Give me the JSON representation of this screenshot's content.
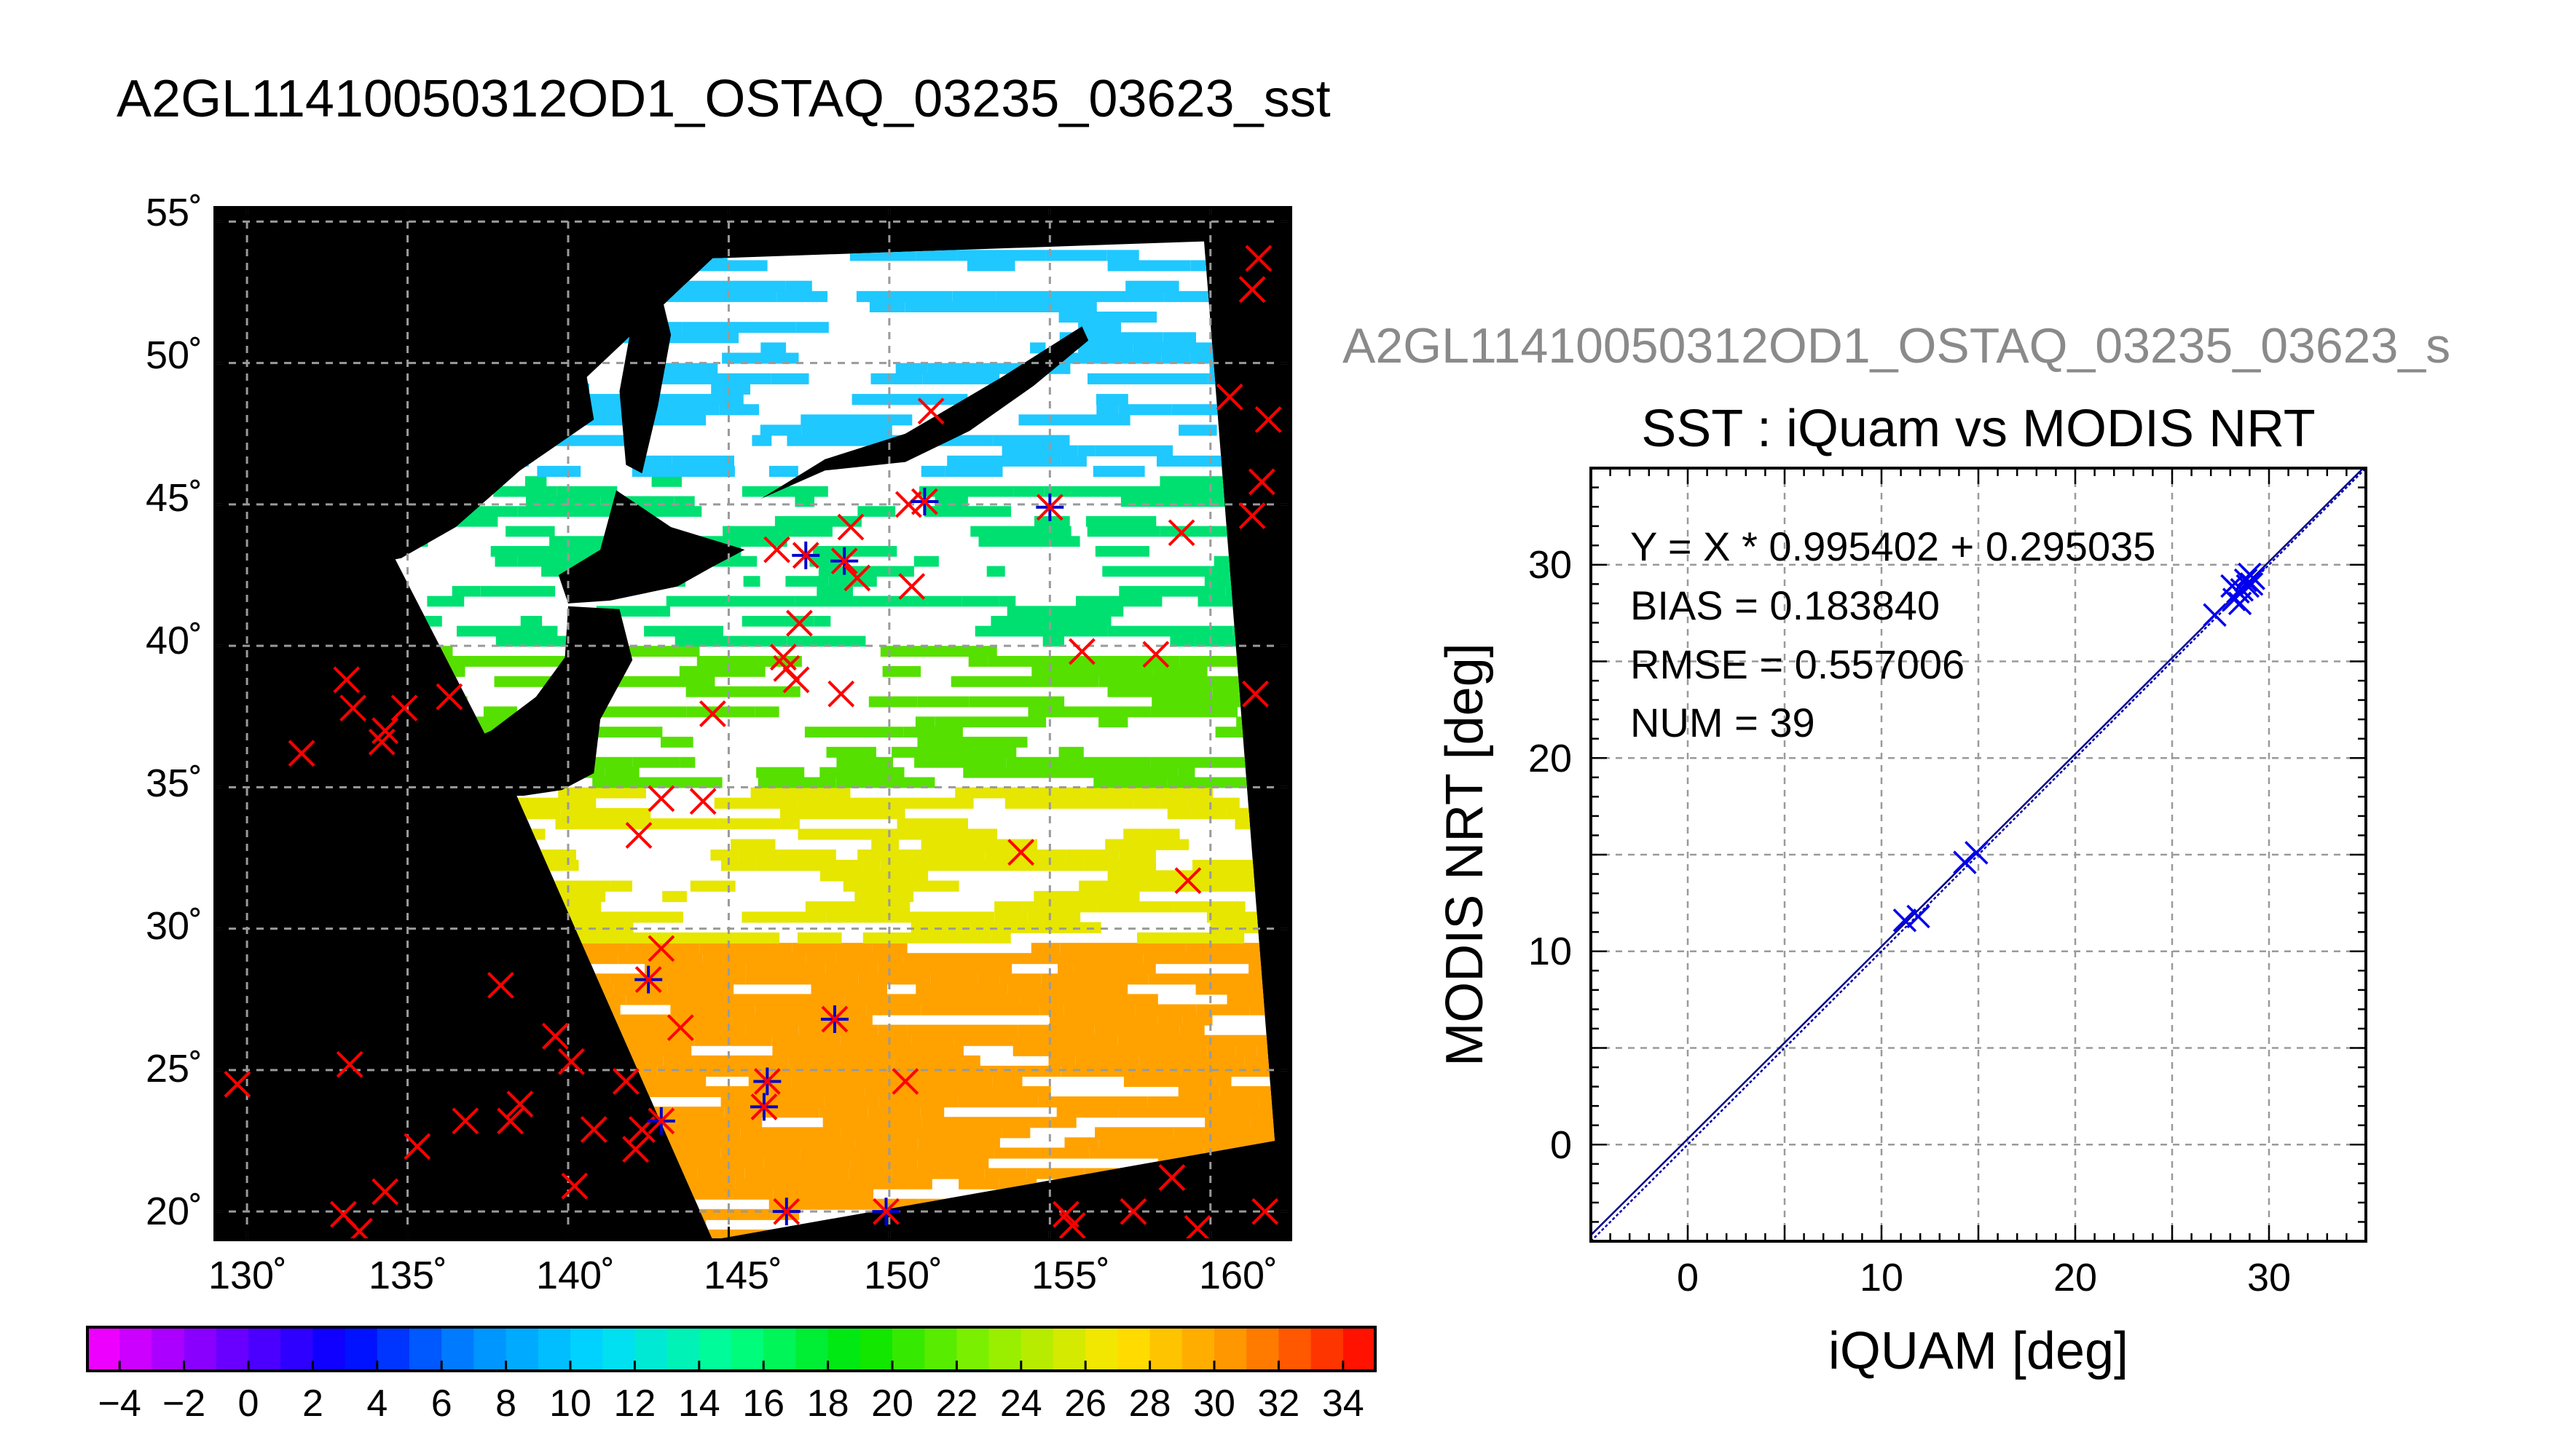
{
  "map_panel": {
    "title": "A2GL11410050312OD1_OSTAQ_03235_03623_sst",
    "lat_ticks": [
      "20˚",
      "25˚",
      "30˚",
      "35˚",
      "40˚",
      "45˚",
      "50˚",
      "55˚"
    ],
    "lon_ticks": [
      "130˚",
      "135˚",
      "140˚",
      "145˚",
      "150˚",
      "155˚",
      "160˚"
    ],
    "colorbar_ticks": [
      "−4",
      "−2",
      "0",
      "2",
      "4",
      "6",
      "8",
      "10",
      "12",
      "14",
      "16",
      "18",
      "20",
      "22",
      "24",
      "26",
      "28",
      "30",
      "32",
      "34"
    ],
    "colors": {
      "land_background": "#000000",
      "cloud_mask": "#ffffff",
      "grid": "#9a9a9a",
      "unmatched_marker": "#ff0000",
      "matched_marker": "#0000cc"
    }
  },
  "scatter_panel": {
    "overflow_title": "A2GL11410050312OD1_OSTAQ_03235_03623_s",
    "title": "SST : iQuam vs MODIS NRT",
    "stats": [
      "Y = X * 0.995402 + 0.295035",
      "BIAS = 0.183840",
      "RMSE = 0.557006",
      "NUM = 39"
    ]
  },
  "chart_data": [
    {
      "type": "heatmap",
      "title": "A2GL11410050312OD1_OSTAQ_03235_03623_sst",
      "xlabel": "",
      "ylabel": "",
      "xlim": [
        129,
        162.5
      ],
      "ylim": [
        19,
        55.5
      ],
      "x_ticks": [
        130,
        135,
        140,
        145,
        150,
        155,
        160
      ],
      "y_ticks": [
        20,
        25,
        30,
        35,
        40,
        45,
        50,
        55
      ],
      "grid": true,
      "colorbar": {
        "range": [
          -5,
          35
        ],
        "ticks": [
          -4,
          -2,
          0,
          2,
          4,
          6,
          8,
          10,
          12,
          14,
          16,
          18,
          20,
          22,
          24,
          26,
          28,
          30,
          32,
          34
        ]
      },
      "swath_corners_lonlat": [
        [
          144.5,
          53.7
        ],
        [
          159.8,
          54.3
        ],
        [
          162.0,
          22.5
        ],
        [
          144.5,
          19.0
        ],
        [
          138.4,
          34.7
        ],
        [
          134.6,
          43.1
        ]
      ],
      "sst_bands": [
        {
          "lat_from": 19,
          "lat_to": 29.5,
          "sst": 29,
          "color": "#ffa200"
        },
        {
          "lat_from": 29.5,
          "lat_to": 35,
          "sst": 25,
          "color": "#e6e600"
        },
        {
          "lat_from": 35,
          "lat_to": 40,
          "sst": 21,
          "color": "#55e000"
        },
        {
          "lat_from": 40,
          "lat_to": 46,
          "sst": 16,
          "color": "#00e070"
        },
        {
          "lat_from": 46,
          "lat_to": 54,
          "sst": 10,
          "color": "#1fc8ff"
        }
      ],
      "markers": [
        {
          "lon": 129.7,
          "lat": 24.5,
          "match": false
        },
        {
          "lon": 133.2,
          "lat": 25.2,
          "match": false
        },
        {
          "lon": 133.0,
          "lat": 19.9,
          "match": false
        },
        {
          "lon": 133.5,
          "lat": 19.3,
          "match": false
        },
        {
          "lon": 134.3,
          "lat": 20.7,
          "match": false
        },
        {
          "lon": 135.3,
          "lat": 22.3,
          "match": false
        },
        {
          "lon": 136.8,
          "lat": 23.2,
          "match": false
        },
        {
          "lon": 138.2,
          "lat": 23.2,
          "match": false
        },
        {
          "lon": 138.5,
          "lat": 23.8,
          "match": false
        },
        {
          "lon": 137.9,
          "lat": 28.0,
          "match": false
        },
        {
          "lon": 139.6,
          "lat": 26.2,
          "match": false
        },
        {
          "lon": 140.1,
          "lat": 25.3,
          "match": false
        },
        {
          "lon": 140.2,
          "lat": 20.9,
          "match": false
        },
        {
          "lon": 140.8,
          "lat": 22.9,
          "match": false
        },
        {
          "lon": 141.8,
          "lat": 24.6,
          "match": false
        },
        {
          "lon": 142.1,
          "lat": 22.2,
          "match": false
        },
        {
          "lon": 142.3,
          "lat": 22.9,
          "match": false
        },
        {
          "lon": 142.5,
          "lat": 28.2,
          "match": true
        },
        {
          "lon": 142.9,
          "lat": 23.2,
          "match": true
        },
        {
          "lon": 142.9,
          "lat": 29.3,
          "match": false
        },
        {
          "lon": 143.5,
          "lat": 26.5,
          "match": false
        },
        {
          "lon": 142.2,
          "lat": 33.3,
          "match": false
        },
        {
          "lon": 142.9,
          "lat": 34.6,
          "match": false
        },
        {
          "lon": 144.2,
          "lat": 34.5,
          "match": false
        },
        {
          "lon": 144.5,
          "lat": 37.6,
          "match": false
        },
        {
          "lon": 131.7,
          "lat": 36.2,
          "match": false
        },
        {
          "lon": 133.1,
          "lat": 38.8,
          "match": false
        },
        {
          "lon": 133.3,
          "lat": 37.8,
          "match": false
        },
        {
          "lon": 134.2,
          "lat": 36.6,
          "match": false
        },
        {
          "lon": 134.3,
          "lat": 37.0,
          "match": false
        },
        {
          "lon": 134.9,
          "lat": 37.8,
          "match": false
        },
        {
          "lon": 136.3,
          "lat": 38.2,
          "match": false
        },
        {
          "lon": 146.1,
          "lat": 23.7,
          "match": true
        },
        {
          "lon": 146.2,
          "lat": 24.6,
          "match": true
        },
        {
          "lon": 146.8,
          "lat": 20.0,
          "match": true
        },
        {
          "lon": 148.3,
          "lat": 26.8,
          "match": true
        },
        {
          "lon": 149.9,
          "lat": 20.0,
          "match": true
        },
        {
          "lon": 150.5,
          "lat": 24.6,
          "match": false
        },
        {
          "lon": 146.5,
          "lat": 43.4,
          "match": false
        },
        {
          "lon": 147.4,
          "lat": 43.2,
          "match": true
        },
        {
          "lon": 148.6,
          "lat": 43.0,
          "match": true
        },
        {
          "lon": 148.8,
          "lat": 44.2,
          "match": false
        },
        {
          "lon": 149.0,
          "lat": 42.4,
          "match": false
        },
        {
          "lon": 147.2,
          "lat": 40.8,
          "match": false
        },
        {
          "lon": 146.7,
          "lat": 39.6,
          "match": false
        },
        {
          "lon": 146.8,
          "lat": 39.2,
          "match": false
        },
        {
          "lon": 147.1,
          "lat": 38.8,
          "match": false
        },
        {
          "lon": 148.5,
          "lat": 38.3,
          "match": false
        },
        {
          "lon": 150.6,
          "lat": 45.0,
          "match": false
        },
        {
          "lon": 151.1,
          "lat": 45.1,
          "match": true
        },
        {
          "lon": 151.3,
          "lat": 48.3,
          "match": false
        },
        {
          "lon": 150.7,
          "lat": 42.1,
          "match": false
        },
        {
          "lon": 155.0,
          "lat": 44.9,
          "match": true
        },
        {
          "lon": 154.1,
          "lat": 32.7,
          "match": false
        },
        {
          "lon": 155.5,
          "lat": 19.9,
          "match": false
        },
        {
          "lon": 155.7,
          "lat": 19.5,
          "match": false
        },
        {
          "lon": 156.0,
          "lat": 39.8,
          "match": false
        },
        {
          "lon": 157.6,
          "lat": 20.0,
          "match": false
        },
        {
          "lon": 158.3,
          "lat": 39.7,
          "match": false
        },
        {
          "lon": 158.8,
          "lat": 21.2,
          "match": false
        },
        {
          "lon": 159.1,
          "lat": 44.0,
          "match": false
        },
        {
          "lon": 159.3,
          "lat": 31.7,
          "match": false
        },
        {
          "lon": 159.6,
          "lat": 19.4,
          "match": false
        },
        {
          "lon": 160.6,
          "lat": 48.8,
          "match": false
        },
        {
          "lon": 161.3,
          "lat": 52.6,
          "match": false
        },
        {
          "lon": 161.5,
          "lat": 53.7,
          "match": false
        },
        {
          "lon": 161.3,
          "lat": 44.6,
          "match": false
        },
        {
          "lon": 161.6,
          "lat": 45.8,
          "match": false
        },
        {
          "lon": 161.8,
          "lat": 48.0,
          "match": false
        },
        {
          "lon": 161.4,
          "lat": 38.3,
          "match": false
        },
        {
          "lon": 161.7,
          "lat": 20.0,
          "match": false
        }
      ]
    },
    {
      "type": "scatter",
      "title": "SST : iQuam vs MODIS NRT",
      "xlabel": "iQUAM [deg]",
      "ylabel": "MODIS NRT [deg]",
      "xlim": [
        -5,
        35
      ],
      "ylim": [
        -5,
        35
      ],
      "x_ticks": [
        0,
        10,
        20,
        30
      ],
      "y_ticks": [
        0,
        10,
        20,
        30
      ],
      "grid": true,
      "fit": {
        "slope": 0.995402,
        "intercept": 0.295035
      },
      "x": [
        11.2,
        11.9,
        14.3,
        14.9,
        27.2,
        28.1,
        28.2,
        28.4,
        28.5,
        28.6,
        28.8,
        28.9,
        29.0,
        29.1,
        29.2
      ],
      "y": [
        11.6,
        11.8,
        14.6,
        15.1,
        27.4,
        28.9,
        28.2,
        28.6,
        28.0,
        28.7,
        29.2,
        28.9,
        29.5,
        29.0,
        29.3
      ]
    }
  ]
}
